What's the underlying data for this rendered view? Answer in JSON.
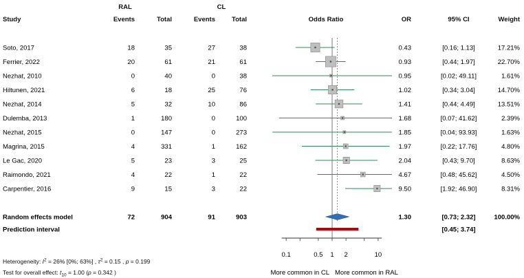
{
  "chart_data": {
    "type": "forest",
    "headers": {
      "group1": "RAL",
      "group2": "CL",
      "study": "Study",
      "events1": "Events",
      "total1": "Total",
      "events2": "Events",
      "total2": "Total",
      "effect": "Odds Ratio",
      "or": "OR",
      "ci": "95% CI",
      "weight": "Weight"
    },
    "studies": [
      {
        "study": "Soto, 2017",
        "e1": "18",
        "t1": "35",
        "e2": "27",
        "t2": "38",
        "or": 0.43,
        "lo": 0.16,
        "hi": 1.13,
        "or_text": "0.43",
        "ci_text": "[0.16; 1.13]",
        "weight_pct": 17.21,
        "weight_text": "17.21%"
      },
      {
        "study": "Ferrier, 2022",
        "e1": "20",
        "t1": "61",
        "e2": "21",
        "t2": "61",
        "or": 0.93,
        "lo": 0.44,
        "hi": 1.97,
        "or_text": "0.93",
        "ci_text": "[0.44; 1.97]",
        "weight_pct": 22.7,
        "weight_text": "22.70%"
      },
      {
        "study": "Nezhat, 2010",
        "e1": "0",
        "t1": "40",
        "e2": "0",
        "t2": "38",
        "or": 0.95,
        "lo": 0.02,
        "hi": 49.11,
        "or_text": "0.95",
        "ci_text": "[0.02; 49.11]",
        "weight_pct": 1.61,
        "weight_text": "1.61%"
      },
      {
        "study": "Hiltunen, 2021",
        "e1": "6",
        "t1": "18",
        "e2": "25",
        "t2": "76",
        "or": 1.02,
        "lo": 0.34,
        "hi": 3.04,
        "or_text": "1.02",
        "ci_text": "[0.34; 3.04]",
        "weight_pct": 14.7,
        "weight_text": "14.70%"
      },
      {
        "study": "Nezhat, 2014",
        "e1": "5",
        "t1": "32",
        "e2": "10",
        "t2": "86",
        "or": 1.41,
        "lo": 0.44,
        "hi": 4.49,
        "or_text": "1.41",
        "ci_text": "[0.44; 4.49]",
        "weight_pct": 13.51,
        "weight_text": "13.51%"
      },
      {
        "study": "Dulemba, 2013",
        "e1": "1",
        "t1": "180",
        "e2": "0",
        "t2": "100",
        "or": 1.68,
        "lo": 0.07,
        "hi": 41.62,
        "or_text": "1.68",
        "ci_text": "[0.07; 41.62]",
        "weight_pct": 2.39,
        "weight_text": "2.39%"
      },
      {
        "study": "Nezhat, 2015",
        "e1": "0",
        "t1": "147",
        "e2": "0",
        "t2": "273",
        "or": 1.85,
        "lo": 0.04,
        "hi": 93.93,
        "or_text": "1.85",
        "ci_text": "[0.04; 93.93]",
        "weight_pct": 1.63,
        "weight_text": "1.63%"
      },
      {
        "study": "Magrina, 2015",
        "e1": "4",
        "t1": "331",
        "e2": "1",
        "t2": "162",
        "or": 1.97,
        "lo": 0.22,
        "hi": 17.76,
        "or_text": "1.97",
        "ci_text": "[0.22; 17.76]",
        "weight_pct": 4.8,
        "weight_text": "4.80%"
      },
      {
        "study": "Le Gac, 2020",
        "e1": "5",
        "t1": "23",
        "e2": "3",
        "t2": "25",
        "or": 2.04,
        "lo": 0.43,
        "hi": 9.7,
        "or_text": "2.04",
        "ci_text": "[0.43; 9.70]",
        "weight_pct": 8.63,
        "weight_text": "8.63%"
      },
      {
        "study": "Raimondo, 2021",
        "e1": "4",
        "t1": "22",
        "e2": "1",
        "t2": "22",
        "or": 4.67,
        "lo": 0.48,
        "hi": 45.62,
        "or_text": "4.67",
        "ci_text": "[0.48; 45.62]",
        "weight_pct": 4.5,
        "weight_text": "4.50%"
      },
      {
        "study": "Carpentier, 2016",
        "e1": "9",
        "t1": "15",
        "e2": "3",
        "t2": "22",
        "or": 9.5,
        "lo": 1.92,
        "hi": 46.9,
        "or_text": "9.50",
        "ci_text": "[1.92; 46.90]",
        "weight_pct": 8.31,
        "weight_text": "8.31%"
      }
    ],
    "pooled": {
      "label": "Random effects model",
      "e1": "72",
      "t1": "904",
      "e2": "91",
      "t2": "903",
      "or": 1.3,
      "lo": 0.73,
      "hi": 2.32,
      "or_text": "1.30",
      "ci_text": "[0.73; 2.32]",
      "weight_text": "100.00%"
    },
    "prediction": {
      "label": "Prediction interval",
      "lo": 0.45,
      "hi": 3.74,
      "ci_text": "[0.45; 3.74]"
    },
    "x_axis": {
      "scale": "log",
      "range": [
        0.05,
        20
      ],
      "ticks": [
        0.1,
        0.5,
        1,
        2,
        10
      ],
      "tick_labels": [
        "0.1",
        "0.5",
        "1",
        "2",
        "10"
      ],
      "reference": 1,
      "label_left": "More common in CL",
      "label_right": "More common in RAL"
    },
    "heterogeneity": {
      "prefix": "Heterogeneity: ",
      "i2_sym": "I",
      "i2_sup": "2",
      "i2_rest": " = 26% [0%; 63%] , ",
      "tau_sym": "τ",
      "tau_sup": "2",
      "tau_rest": " = 0.15 , ",
      "p_sym": "p",
      "p_rest": " = 0.199"
    },
    "overall_test": {
      "prefix": "Test for overall effect: ",
      "t_sym": "t",
      "t_sub": "10",
      "t_rest": " = 1.00 (",
      "p_sym": "p",
      "p_rest": " = 0.342 )"
    },
    "colors": {
      "ci_line": "#2e8b57",
      "box_fill": "#bfbfbf",
      "box_stroke": "#888888",
      "diamond_fill": "#2f6fb5",
      "prediction": "#c00000",
      "reference_line": "#777777",
      "pooled_dash": "#777777"
    }
  }
}
